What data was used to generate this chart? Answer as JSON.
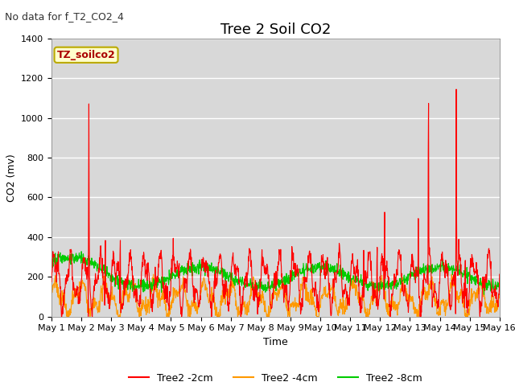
{
  "title": "Tree 2 Soil CO2",
  "subtitle": "No data for f_T2_CO2_4",
  "ylabel": "CO2 (mv)",
  "xlabel": "Time",
  "legend_label": "TZ_soilco2",
  "ylim": [
    0,
    1400
  ],
  "series_labels": [
    "Tree2 -2cm",
    "Tree2 -4cm",
    "Tree2 -8cm"
  ],
  "series_colors": [
    "#ff0000",
    "#ff9900",
    "#00cc00"
  ],
  "bg_color": "#d8d8d8",
  "fig_bg": "#ffffff",
  "x_tick_labels": [
    "May 1",
    "May 2",
    "May 3",
    "May 4",
    "May 5",
    "May 6",
    "May 7",
    "May 8",
    "May 9",
    "May 10",
    "May 11",
    "May 12",
    "May 13",
    "May 14",
    "May 15",
    "May 16"
  ],
  "num_days": 15,
  "yticks": [
    0,
    200,
    400,
    600,
    800,
    1000,
    1200,
    1400
  ],
  "title_fontsize": 13,
  "subtitle_fontsize": 9,
  "axis_label_fontsize": 9,
  "tick_fontsize": 8,
  "legend_fontsize": 9,
  "legend_label_fontsize": 9,
  "line_width": 0.8
}
